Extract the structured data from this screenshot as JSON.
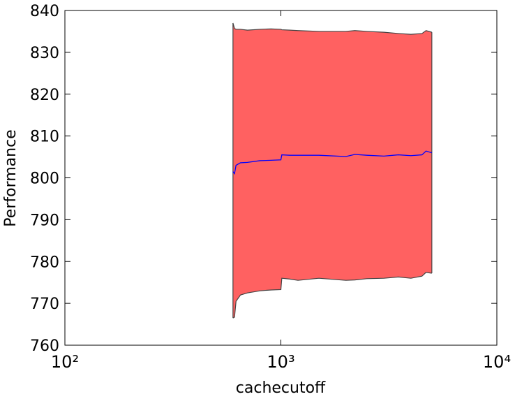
{
  "chart_data": {
    "type": "line",
    "xlabel": "cachecutoff",
    "ylabel": "Performance",
    "xscale": "log",
    "x": [
      600,
      610,
      620,
      650,
      700,
      800,
      900,
      1000,
      1010,
      1100,
      1200,
      1500,
      2000,
      2200,
      2500,
      3000,
      3500,
      4000,
      4500,
      4700,
      5000
    ],
    "series": [
      {
        "color": "#0000ff",
        "values": [
          801.5,
          801,
          803,
          803.6,
          803.7,
          804.1,
          804.2,
          804.3,
          805.5,
          805.4,
          805.4,
          805.4,
          805.1,
          805.6,
          805.4,
          805.2,
          805.5,
          805.3,
          805.5,
          806.4,
          806.0
        ]
      }
    ],
    "band": {
      "color": "#ff6161",
      "edge_color": "#444444",
      "upper": [
        837,
        835.7,
        835.5,
        835.5,
        835.3,
        835.5,
        835.6,
        835.5,
        835.4,
        835.3,
        835.2,
        835,
        835,
        835.2,
        835,
        834.8,
        834.5,
        834.3,
        834.5,
        835.2,
        834.8
      ],
      "lower": [
        766.5,
        766.7,
        770.5,
        772,
        772.5,
        773,
        773.2,
        773.3,
        776,
        775.8,
        775.5,
        776,
        775.5,
        775.6,
        775.9,
        776,
        776.3,
        776,
        776.5,
        777.4,
        777.2
      ]
    },
    "xlim": [
      100,
      10000
    ],
    "xticks": [
      {
        "value": 100,
        "label": "10²"
      },
      {
        "value": 1000,
        "label": "10³"
      },
      {
        "value": 10000,
        "label": "10⁴"
      }
    ],
    "ylim": [
      760,
      840
    ],
    "yticks": [
      760,
      770,
      780,
      790,
      800,
      810,
      820,
      830,
      840
    ],
    "grid": false
  }
}
